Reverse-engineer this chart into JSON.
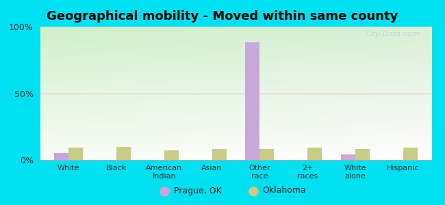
{
  "title": "Geographical mobility - Moved within same county",
  "categories": [
    "White",
    "Black",
    "American\nIndian",
    "Asian",
    "Other\nrace",
    "2+\nraces",
    "White\nalone",
    "Hispanic"
  ],
  "prague_values": [
    5,
    0,
    0,
    0,
    88,
    0,
    4,
    0
  ],
  "oklahoma_values": [
    9,
    10,
    7,
    8,
    8,
    9,
    8,
    9
  ],
  "prague_color": "#c8a8d8",
  "oklahoma_color": "#c8cc88",
  "background_outer": "#00e0f0",
  "title_fontsize": 13,
  "bar_width": 0.3,
  "ylim": [
    0,
    100
  ],
  "yticks": [
    0,
    50,
    100
  ],
  "yticklabels": [
    "0%",
    "50%",
    "100%"
  ],
  "legend_labels": [
    "Prague, OK",
    "Oklahoma"
  ],
  "watermark": "City-Data.com"
}
